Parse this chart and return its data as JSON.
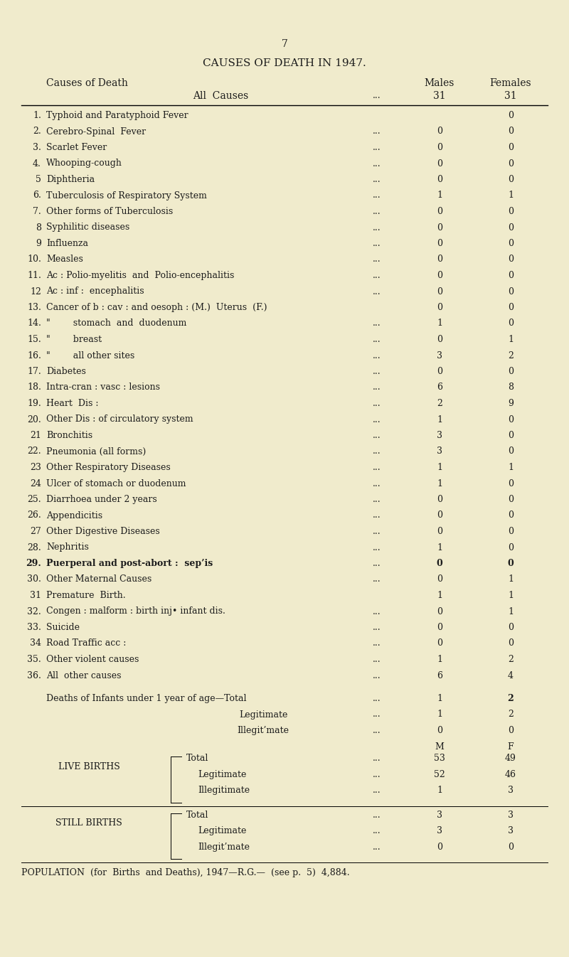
{
  "page_number": "7",
  "title": "CAUSES OF DEATH IN 1947.",
  "bg_color": "#f0ebcc",
  "rows": [
    {
      "num": "1.",
      "cause": "Typhoid and Paratyphoid Fever",
      "dots": "",
      "males": "",
      "females": "0"
    },
    {
      "num": "2.",
      "cause": "Cerebro-Spinal  Fever",
      "dots": "...",
      "males": "0",
      "females": "0"
    },
    {
      "num": "3.",
      "cause": "Scarlet Fever",
      "dots": "...",
      "males": "0",
      "females": "0"
    },
    {
      "num": "4.",
      "cause": "Whooping-cough",
      "dots": "...",
      "males": "0",
      "females": "0"
    },
    {
      "num": "5",
      "cause": "Diphtheria",
      "dots": "...",
      "males": "0",
      "females": "0"
    },
    {
      "num": "6.",
      "cause": "Tuberculosis of Respiratory System",
      "dots": "...",
      "males": "1",
      "females": "1"
    },
    {
      "num": "7.",
      "cause": "Other forms of Tuberculosis",
      "dots": "...",
      "males": "0",
      "females": "0"
    },
    {
      "num": "8",
      "cause": "Syphilitic diseases",
      "dots": "...",
      "males": "0",
      "females": "0"
    },
    {
      "num": "9",
      "cause": "Influenza",
      "dots": "...",
      "males": "0",
      "females": "0"
    },
    {
      "num": "10.",
      "cause": "Measles",
      "dots": "...",
      "males": "0",
      "females": "0"
    },
    {
      "num": "11.",
      "cause": "Ac : Polio-myelitis  and  Polio-encephalitis",
      "dots": "...",
      "males": "0",
      "females": "0"
    },
    {
      "num": "12",
      "cause": "Ac : inf :  encephalitis",
      "dots": "...",
      "males": "0",
      "females": "0"
    },
    {
      "num": "13.",
      "cause": "Cancer of b : cav : and oesoph : (M.)  Uterus  (F.)",
      "dots": "",
      "males": "0",
      "females": "0"
    },
    {
      "num": "14.",
      "cause": "\"        stomach  and  duodenum",
      "dots": "...",
      "males": "1",
      "females": "0"
    },
    {
      "num": "15.",
      "cause": "\"        breast",
      "dots": "...",
      "males": "0",
      "females": "1"
    },
    {
      "num": "16.",
      "cause": "\"        all other sites",
      "dots": "...",
      "males": "3",
      "females": "2"
    },
    {
      "num": "17.",
      "cause": "Diabetes",
      "dots": "...",
      "males": "0",
      "females": "0"
    },
    {
      "num": "18.",
      "cause": "Intra-cran : vasc : lesions",
      "dots": "...",
      "males": "6",
      "females": "8"
    },
    {
      "num": "19.",
      "cause": "Heart  Dis :",
      "dots": "...",
      "males": "2",
      "females": "9"
    },
    {
      "num": "20.",
      "cause": "Other Dis : of circulatory system",
      "dots": "...",
      "males": "1",
      "females": "0"
    },
    {
      "num": "21",
      "cause": "Bronchitis",
      "dots": "...",
      "males": "3",
      "females": "0"
    },
    {
      "num": "22.",
      "cause": "Pneumonia (all forms)",
      "dots": "...",
      "males": "3",
      "females": "0"
    },
    {
      "num": "23",
      "cause": "Other Respiratory Diseases",
      "dots": "...",
      "males": "1",
      "females": "1"
    },
    {
      "num": "24",
      "cause": "Ulcer of stomach or duodenum",
      "dots": "...",
      "males": "1",
      "females": "0"
    },
    {
      "num": "25.",
      "cause": "Diarrhoea under 2 years",
      "dots": "...",
      "males": "0",
      "females": "0"
    },
    {
      "num": "26.",
      "cause": "Appendicitis",
      "dots": "...",
      "males": "0",
      "females": "0"
    },
    {
      "num": "27",
      "cause": "Other Digestive Diseases",
      "dots": "...",
      "males": "0",
      "females": "0"
    },
    {
      "num": "28.",
      "cause": "Nephritis",
      "dots": "...",
      "males": "1",
      "females": "0"
    },
    {
      "num": "29.",
      "cause": "Puerperal and post-abort :  sep’is",
      "dots": "...",
      "males": "0",
      "females": "0",
      "bold": true
    },
    {
      "num": "30.",
      "cause": "Other Maternal Causes",
      "dots": "...",
      "males": "0",
      "females": "1"
    },
    {
      "num": "31",
      "cause": "Premature  Birth.",
      "dots": "",
      "males": "1",
      "females": "1"
    },
    {
      "num": "32.",
      "cause": "Congen : malform : birth inj• infant dis.",
      "dots": "...",
      "males": "0",
      "females": "1"
    },
    {
      "num": "33.",
      "cause": "Suicide",
      "dots": "...",
      "males": "0",
      "females": "0"
    },
    {
      "num": "34",
      "cause": "Road Traffic acc :",
      "dots": "...",
      "males": "0",
      "females": "0"
    },
    {
      "num": "35.",
      "cause": "Other violent causes",
      "dots": "...",
      "males": "1",
      "females": "2"
    },
    {
      "num": "36.",
      "cause": "All  other causes",
      "dots": "...",
      "males": "6",
      "females": "4"
    }
  ],
  "infant_total": {
    "label": "Deaths of Infants under 1 year of age—Total",
    "dots": "...",
    "males": "1",
    "females": "2"
  },
  "infant_sub": [
    {
      "label": "Legitimate",
      "dots": "...",
      "males": "1",
      "females": "2"
    },
    {
      "label": "Illegit’mate",
      "dots": "...",
      "males": "0",
      "females": "0"
    }
  ],
  "live_births_label": "LIVE BIRTHS",
  "live_births": [
    {
      "label": "Total",
      "dots": "...",
      "males": "53",
      "females": "49"
    },
    {
      "label": "Legitimate",
      "dots": "...",
      "males": "52",
      "females": "46"
    },
    {
      "label": "Illegitimate",
      "dots": "...",
      "males": "1",
      "females": "3"
    }
  ],
  "still_births_label": "STILL BIRTHS",
  "still_births": [
    {
      "label": "Total",
      "dots": "...",
      "males": "3",
      "females": "3"
    },
    {
      "label": "Legitimate",
      "dots": "...",
      "males": "3",
      "females": "3"
    },
    {
      "label": "Illegit’mate",
      "dots": "...",
      "males": "0",
      "females": "0"
    }
  ],
  "population": "POPULATION  (for  Births  and Deaths), 1947—R.G.—  (see p.  5)  4,884."
}
